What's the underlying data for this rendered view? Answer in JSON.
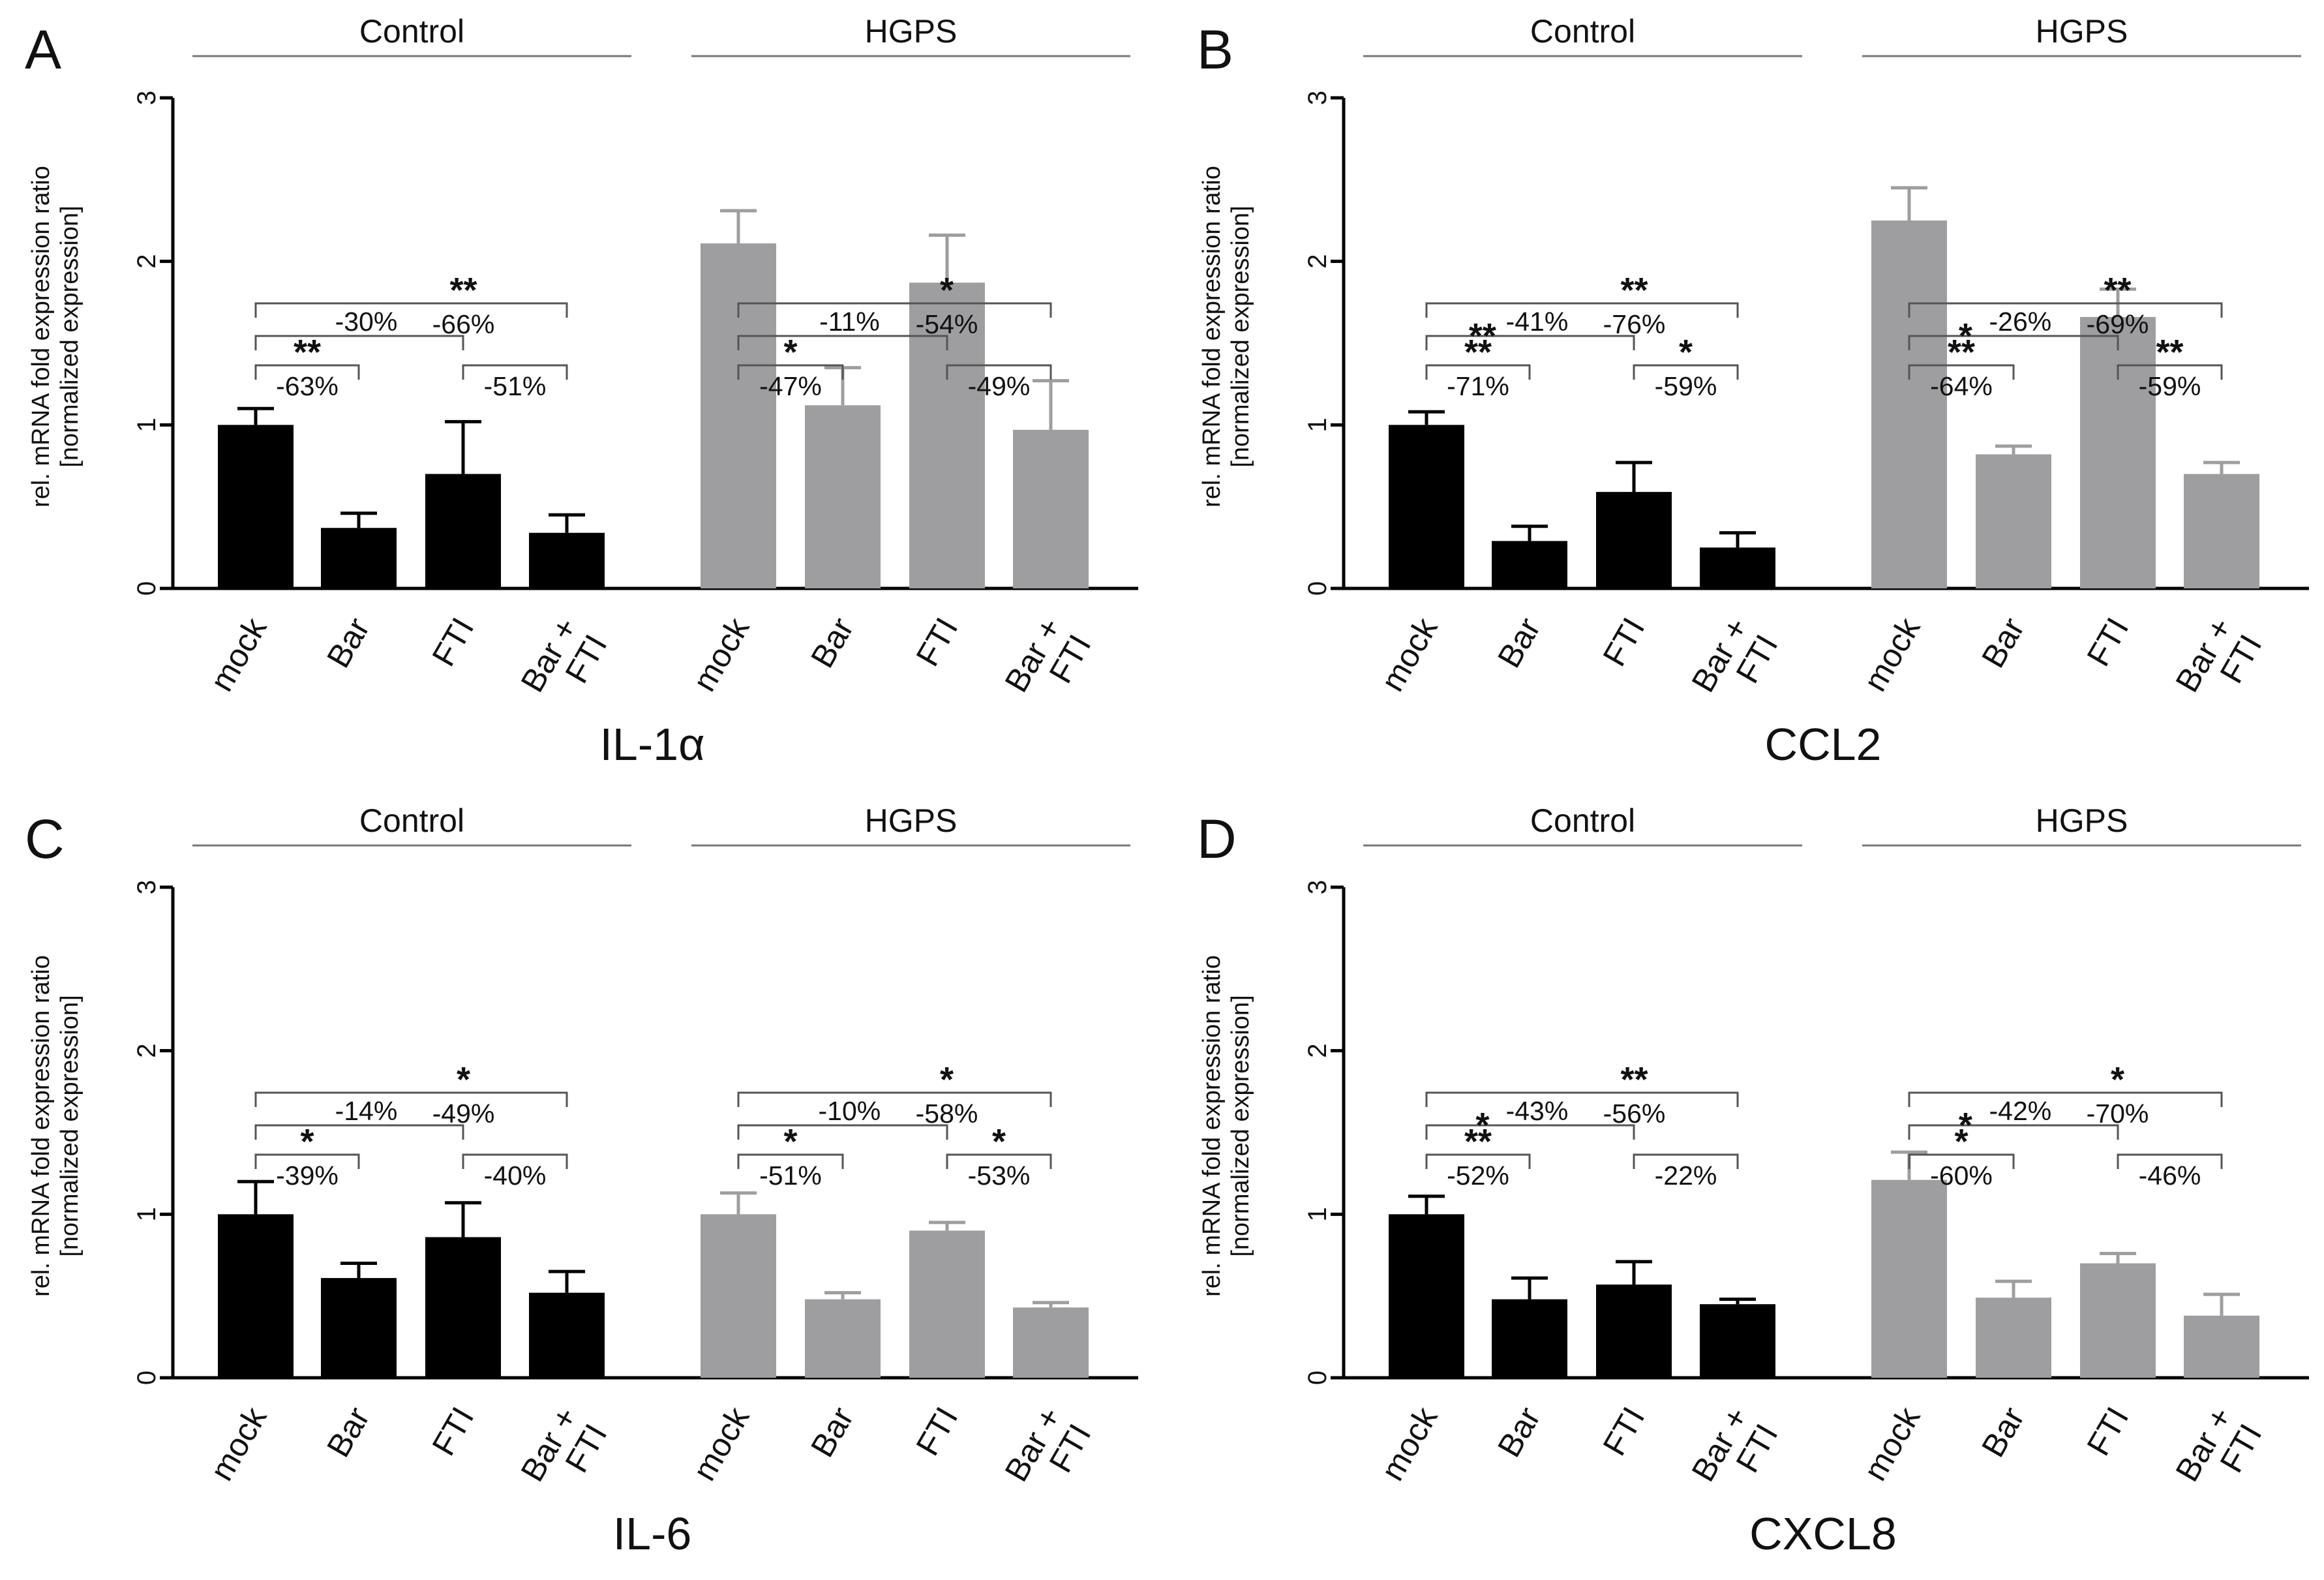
{
  "colors": {
    "control_bar": "#000000",
    "hgps_bar": "#9e9ea1",
    "axis": "#000000",
    "bracket": "#555555",
    "group_line": "#777777"
  },
  "chart_data": [
    {
      "type": "bar",
      "panel": "A",
      "gene": "IL-1α",
      "ylabel": [
        "rel. mRNA fold expression ratio",
        "[normalized expression]"
      ],
      "ylim": [
        0,
        3
      ],
      "yticks": [
        0,
        1,
        2,
        3
      ],
      "groups": [
        "Control",
        "HGPS"
      ],
      "categories": [
        "mock",
        "Bar",
        "FTI",
        "Bar + FTI"
      ],
      "series": [
        {
          "name": "Control",
          "values": [
            1.0,
            0.37,
            0.7,
            0.34
          ],
          "errors": [
            0.1,
            0.09,
            0.32,
            0.11
          ]
        },
        {
          "name": "HGPS",
          "values": [
            2.11,
            1.12,
            1.87,
            0.97
          ],
          "errors": [
            0.2,
            0.23,
            0.29,
            0.3
          ]
        }
      ],
      "comparisons": [
        {
          "group": 0,
          "from": 0,
          "to": 1,
          "level": 1,
          "stars": "**",
          "pct": "-63%"
        },
        {
          "group": 0,
          "from": 0,
          "to": 2,
          "level": 2,
          "stars": "",
          "pct": "-30%"
        },
        {
          "group": 0,
          "from": 0,
          "to": 3,
          "level": 3,
          "stars": "**",
          "pct": "-66%"
        },
        {
          "group": 0,
          "from": 2,
          "to": 3,
          "level": 1,
          "stars": "",
          "pct": "-51%"
        },
        {
          "group": 1,
          "from": 0,
          "to": 1,
          "level": 1,
          "stars": "*",
          "pct": "-47%"
        },
        {
          "group": 1,
          "from": 0,
          "to": 2,
          "level": 2,
          "stars": "",
          "pct": "-11%"
        },
        {
          "group": 1,
          "from": 0,
          "to": 3,
          "level": 3,
          "stars": "*",
          "pct": "-54%"
        },
        {
          "group": 1,
          "from": 2,
          "to": 3,
          "level": 1,
          "stars": "",
          "pct": "-49%"
        }
      ]
    },
    {
      "type": "bar",
      "panel": "B",
      "gene": "CCL2",
      "ylabel": [
        "rel. mRNA fold expression ratio",
        "[normalized expression]"
      ],
      "ylim": [
        0,
        3
      ],
      "yticks": [
        0,
        1,
        2,
        3
      ],
      "groups": [
        "Control",
        "HGPS"
      ],
      "categories": [
        "mock",
        "Bar",
        "FTI",
        "Bar + FTI"
      ],
      "series": [
        {
          "name": "Control",
          "values": [
            1.0,
            0.29,
            0.59,
            0.25
          ],
          "errors": [
            0.08,
            0.09,
            0.18,
            0.09
          ]
        },
        {
          "name": "HGPS",
          "values": [
            2.25,
            0.82,
            1.66,
            0.7
          ],
          "errors": [
            0.2,
            0.05,
            0.17,
            0.07
          ]
        }
      ],
      "comparisons": [
        {
          "group": 0,
          "from": 0,
          "to": 1,
          "level": 1,
          "stars": "**",
          "pct": "-71%"
        },
        {
          "group": 0,
          "from": 0,
          "to": 2,
          "level": 2,
          "stars": "**",
          "pct": "-41%"
        },
        {
          "group": 0,
          "from": 0,
          "to": 3,
          "level": 3,
          "stars": "**",
          "pct": "-76%"
        },
        {
          "group": 0,
          "from": 2,
          "to": 3,
          "level": 1,
          "stars": "*",
          "pct": "-59%"
        },
        {
          "group": 1,
          "from": 0,
          "to": 1,
          "level": 1,
          "stars": "**",
          "pct": "-64%"
        },
        {
          "group": 1,
          "from": 0,
          "to": 2,
          "level": 2,
          "stars": "*",
          "pct": "-26%"
        },
        {
          "group": 1,
          "from": 0,
          "to": 3,
          "level": 3,
          "stars": "**",
          "pct": "-69%"
        },
        {
          "group": 1,
          "from": 2,
          "to": 3,
          "level": 1,
          "stars": "**",
          "pct": "-59%"
        }
      ]
    },
    {
      "type": "bar",
      "panel": "C",
      "gene": "IL-6",
      "ylabel": [
        "rel. mRNA fold expression ratio",
        "[normalized expression]"
      ],
      "ylim": [
        0,
        3
      ],
      "yticks": [
        0,
        1,
        2,
        3
      ],
      "groups": [
        "Control",
        "HGPS"
      ],
      "categories": [
        "mock",
        "Bar",
        "FTI",
        "Bar + FTI"
      ],
      "series": [
        {
          "name": "Control",
          "values": [
            1.0,
            0.61,
            0.86,
            0.52
          ],
          "errors": [
            0.2,
            0.09,
            0.21,
            0.13
          ]
        },
        {
          "name": "HGPS",
          "values": [
            1.0,
            0.48,
            0.9,
            0.43
          ],
          "errors": [
            0.13,
            0.04,
            0.05,
            0.03
          ]
        }
      ],
      "comparisons": [
        {
          "group": 0,
          "from": 0,
          "to": 1,
          "level": 1,
          "stars": "*",
          "pct": "-39%"
        },
        {
          "group": 0,
          "from": 0,
          "to": 2,
          "level": 2,
          "stars": "",
          "pct": "-14%"
        },
        {
          "group": 0,
          "from": 0,
          "to": 3,
          "level": 3,
          "stars": "*",
          "pct": "-49%"
        },
        {
          "group": 0,
          "from": 2,
          "to": 3,
          "level": 1,
          "stars": "",
          "pct": "-40%"
        },
        {
          "group": 1,
          "from": 0,
          "to": 1,
          "level": 1,
          "stars": "*",
          "pct": "-51%"
        },
        {
          "group": 1,
          "from": 0,
          "to": 2,
          "level": 2,
          "stars": "",
          "pct": "-10%"
        },
        {
          "group": 1,
          "from": 0,
          "to": 3,
          "level": 3,
          "stars": "*",
          "pct": "-58%"
        },
        {
          "group": 1,
          "from": 2,
          "to": 3,
          "level": 1,
          "stars": "*",
          "pct": "-53%"
        }
      ]
    },
    {
      "type": "bar",
      "panel": "D",
      "gene": "CXCL8",
      "ylabel": [
        "rel. mRNA fold expression ratio",
        "[normalized expression]"
      ],
      "ylim": [
        0,
        3
      ],
      "yticks": [
        0,
        1,
        2,
        3
      ],
      "groups": [
        "Control",
        "HGPS"
      ],
      "categories": [
        "mock",
        "Bar",
        "FTI",
        "Bar + FTI"
      ],
      "series": [
        {
          "name": "Control",
          "values": [
            1.0,
            0.48,
            0.57,
            0.45
          ],
          "errors": [
            0.11,
            0.13,
            0.14,
            0.03
          ]
        },
        {
          "name": "HGPS",
          "values": [
            1.21,
            0.49,
            0.7,
            0.38
          ],
          "errors": [
            0.17,
            0.1,
            0.06,
            0.13
          ]
        }
      ],
      "comparisons": [
        {
          "group": 0,
          "from": 0,
          "to": 1,
          "level": 1,
          "stars": "**",
          "pct": "-52%"
        },
        {
          "group": 0,
          "from": 0,
          "to": 2,
          "level": 2,
          "stars": "*",
          "pct": "-43%"
        },
        {
          "group": 0,
          "from": 0,
          "to": 3,
          "level": 3,
          "stars": "**",
          "pct": "-56%"
        },
        {
          "group": 0,
          "from": 2,
          "to": 3,
          "level": 1,
          "stars": "",
          "pct": "-22%"
        },
        {
          "group": 1,
          "from": 0,
          "to": 1,
          "level": 1,
          "stars": "*",
          "pct": "-60%"
        },
        {
          "group": 1,
          "from": 0,
          "to": 2,
          "level": 2,
          "stars": "*",
          "pct": "-42%"
        },
        {
          "group": 1,
          "from": 0,
          "to": 3,
          "level": 3,
          "stars": "*",
          "pct": "-70%"
        },
        {
          "group": 1,
          "from": 2,
          "to": 3,
          "level": 1,
          "stars": "",
          "pct": "-46%"
        }
      ]
    }
  ]
}
